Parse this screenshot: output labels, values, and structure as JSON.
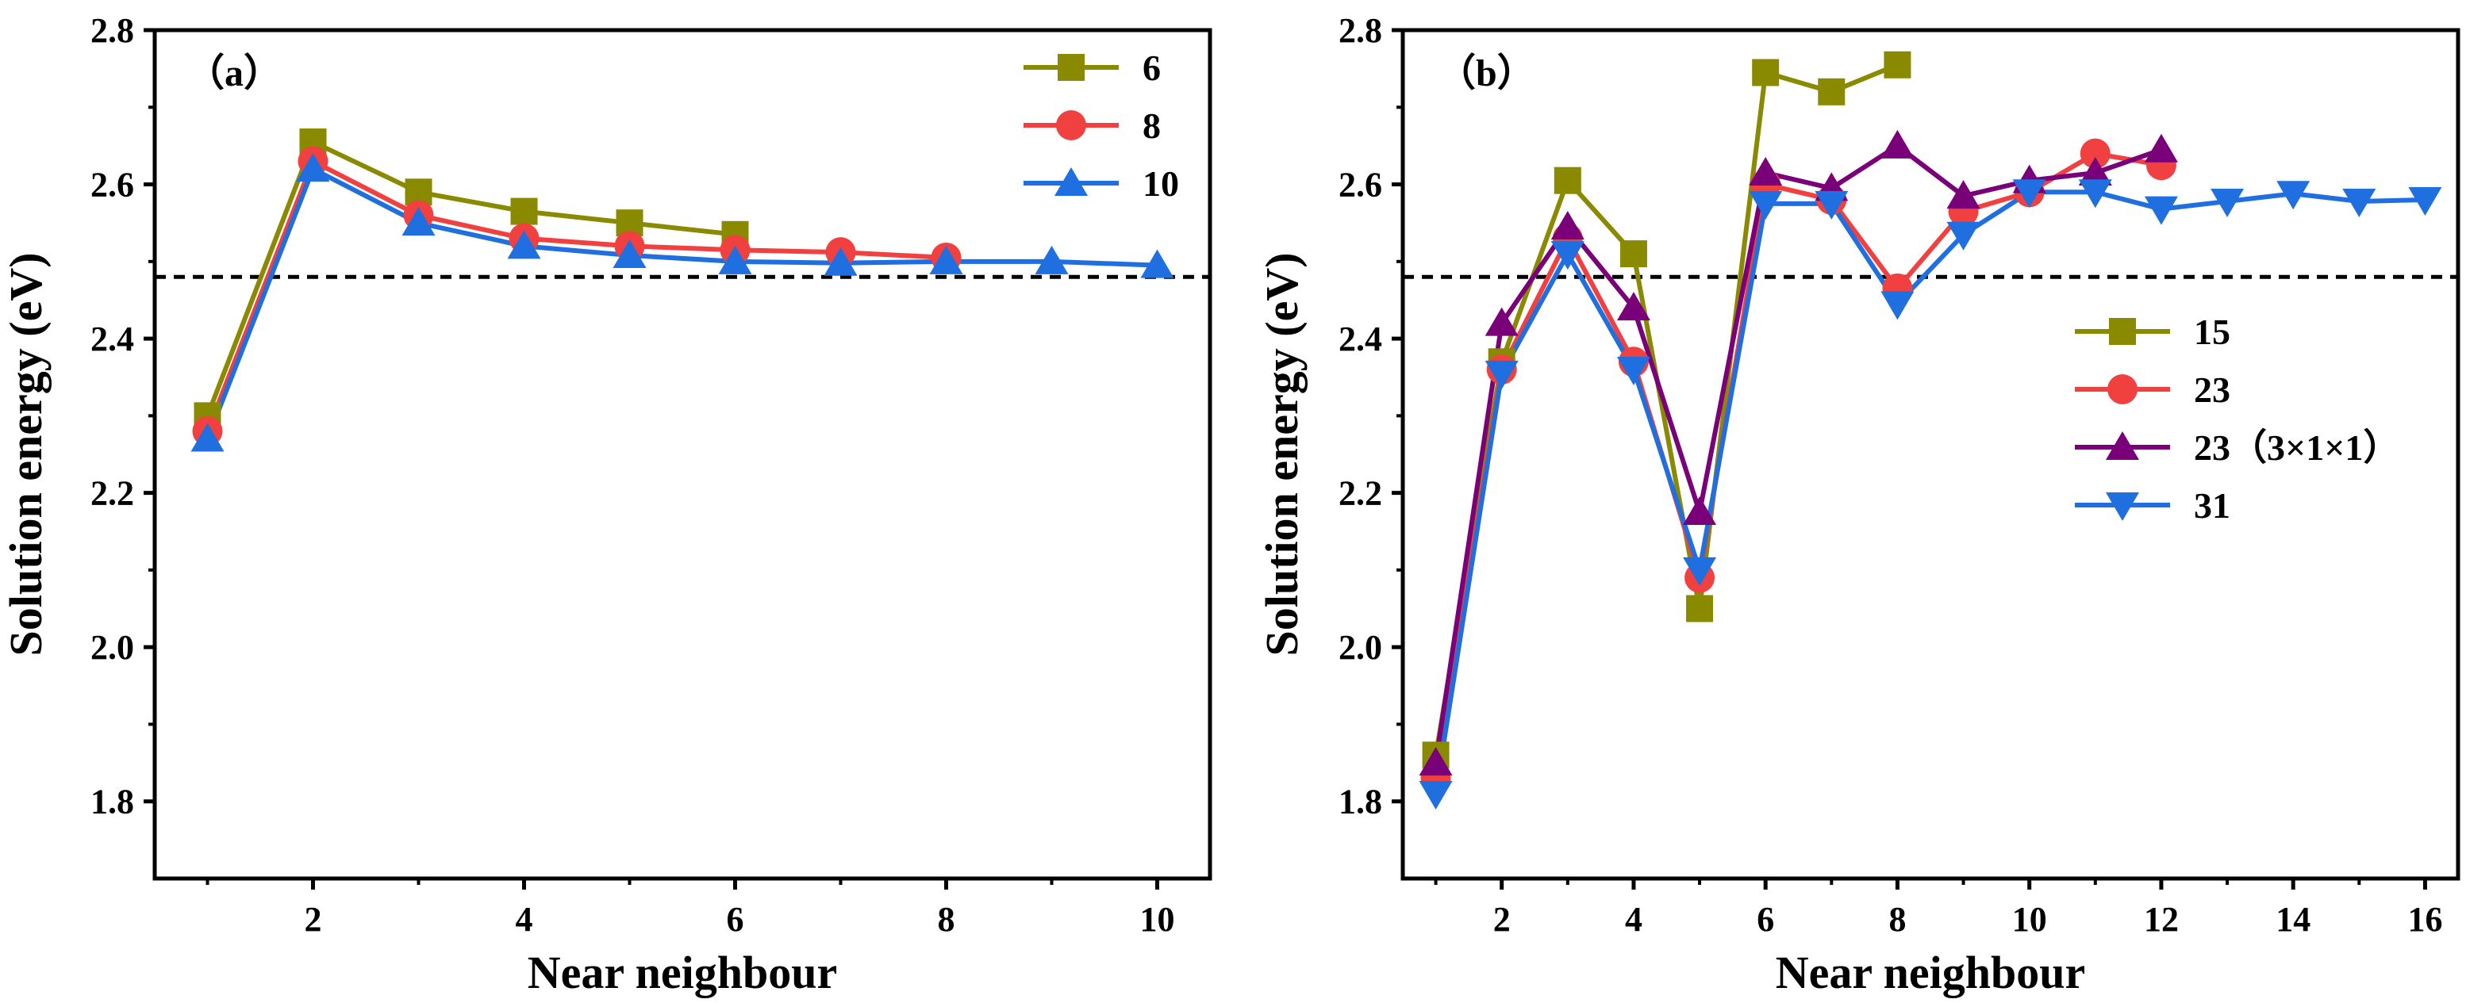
{
  "colors": {
    "olive": "#8A8A00",
    "red": "#F04040",
    "purple": "#7A007A",
    "blue": "#1F6FE0",
    "reference": "#000000"
  },
  "chart_data": [
    {
      "type": "line",
      "panel_label": "（a）",
      "xlabel": "Near neighbour",
      "ylabel": "Solution energy (eV)",
      "xlim": [
        0.5,
        10.5
      ],
      "ylim": [
        1.7,
        2.8
      ],
      "xticks": [
        2,
        4,
        6,
        8,
        10
      ],
      "yticks": [
        1.8,
        2.0,
        2.2,
        2.4,
        2.6,
        2.8
      ],
      "xtick_labels": [
        "2",
        "4",
        "6",
        "8",
        "10"
      ],
      "ytick_labels": [
        "1.8",
        "2.0",
        "2.2",
        "2.4",
        "2.6",
        "2.8"
      ],
      "reference_line": 2.48,
      "legend_position": "top-right",
      "series": [
        {
          "name": "6",
          "color": "#8A8A00",
          "marker": "square",
          "x": [
            1,
            2,
            3,
            4,
            5,
            6
          ],
          "values": [
            2.3,
            2.655,
            2.59,
            2.565,
            2.55,
            2.535
          ]
        },
        {
          "name": "8",
          "color": "#F04040",
          "marker": "circle",
          "x": [
            1,
            2,
            3,
            4,
            5,
            6,
            7,
            8
          ],
          "values": [
            2.28,
            2.63,
            2.56,
            2.53,
            2.52,
            2.515,
            2.512,
            2.505
          ]
        },
        {
          "name": "10",
          "color": "#1F6FE0",
          "marker": "triangle-up",
          "x": [
            1,
            2,
            3,
            4,
            5,
            6,
            7,
            8,
            9,
            10
          ],
          "values": [
            2.27,
            2.62,
            2.55,
            2.52,
            2.508,
            2.5,
            2.498,
            2.5,
            2.5,
            2.495
          ]
        }
      ]
    },
    {
      "type": "line",
      "panel_label": "（b）",
      "xlabel": "Near neighbour",
      "ylabel": "Solution energy (eV)",
      "xlim": [
        0.5,
        16.5
      ],
      "ylim": [
        1.7,
        2.8
      ],
      "xticks": [
        2,
        4,
        6,
        8,
        10,
        12,
        14,
        16
      ],
      "yticks": [
        1.8,
        2.0,
        2.2,
        2.4,
        2.6,
        2.8
      ],
      "xtick_labels": [
        "2",
        "4",
        "6",
        "8",
        "10",
        "12",
        "14",
        "16"
      ],
      "ytick_labels": [
        "1.8",
        "2.0",
        "2.2",
        "2.4",
        "2.6",
        "2.8"
      ],
      "reference_line": 2.48,
      "legend_position": "center-right",
      "series": [
        {
          "name": "15",
          "color": "#8A8A00",
          "marker": "square",
          "x": [
            1,
            2,
            3,
            4,
            5,
            6,
            7,
            8
          ],
          "values": [
            1.86,
            2.37,
            2.605,
            2.51,
            2.05,
            2.745,
            2.72,
            2.755
          ]
        },
        {
          "name": "23",
          "color": "#F04040",
          "marker": "circle",
          "x": [
            1,
            2,
            3,
            4,
            5,
            6,
            7,
            8,
            9,
            10,
            11,
            12
          ],
          "values": [
            1.83,
            2.36,
            2.53,
            2.37,
            2.09,
            2.6,
            2.58,
            2.465,
            2.565,
            2.59,
            2.64,
            2.625
          ]
        },
        {
          "name": "23（3×1×1）",
          "color": "#7A007A",
          "marker": "triangle-up",
          "x": [
            1,
            2,
            3,
            4,
            5,
            6,
            7,
            8,
            9,
            10,
            11,
            12
          ],
          "values": [
            1.85,
            2.42,
            2.545,
            2.44,
            2.175,
            2.615,
            2.595,
            2.65,
            2.585,
            2.605,
            2.615,
            2.645
          ]
        },
        {
          "name": "31",
          "color": "#1F6FE0",
          "marker": "triangle-down",
          "x": [
            1,
            2,
            3,
            4,
            5,
            6,
            7,
            8,
            9,
            10,
            11,
            12,
            13,
            14,
            15,
            16
          ],
          "values": [
            1.81,
            2.355,
            2.51,
            2.36,
            2.1,
            2.575,
            2.575,
            2.445,
            2.535,
            2.59,
            2.59,
            2.568,
            2.578,
            2.588,
            2.578,
            2.58
          ]
        }
      ]
    }
  ]
}
